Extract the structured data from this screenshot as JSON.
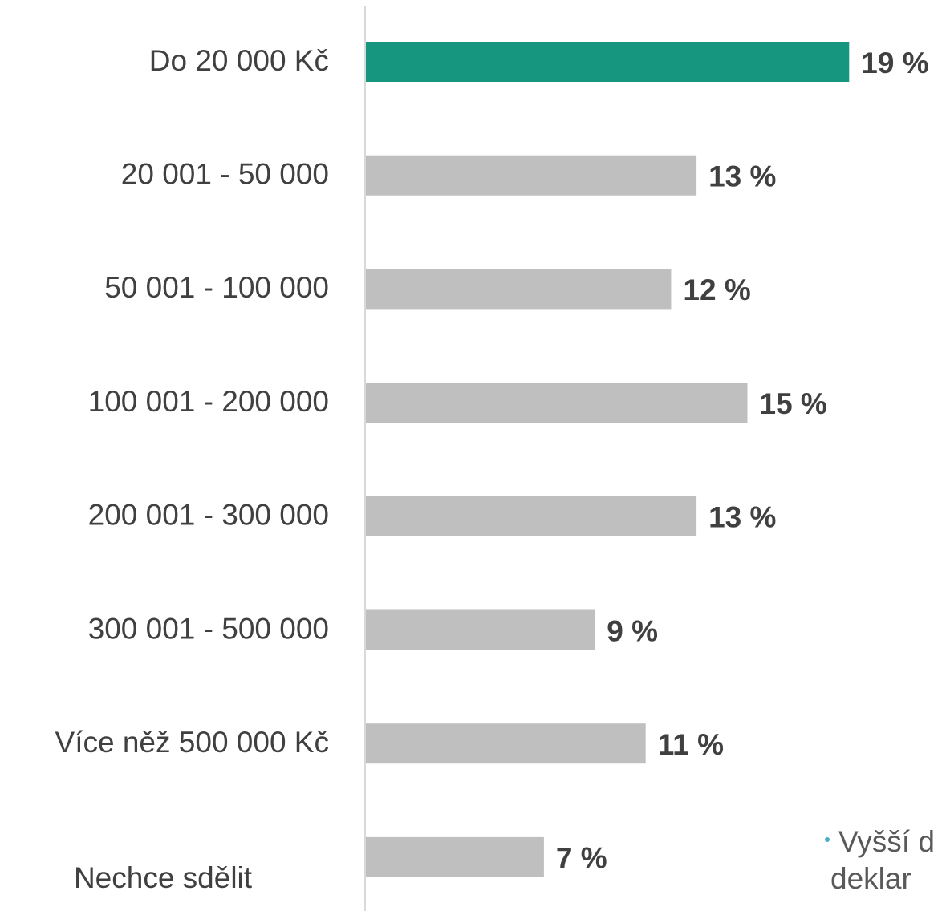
{
  "chart_data": {
    "type": "bar",
    "orientation": "horizontal",
    "categories": [
      "Do 20 000 Kč",
      "20 001 - 50 000",
      "50 001 - 100 000",
      "100 001 - 200 000",
      "200 001 - 300 000",
      "300 001 - 500 000",
      "Více něž 500 000 Kč",
      "Nechce sdělit"
    ],
    "values": [
      19,
      13,
      12,
      15,
      13,
      9,
      11,
      7
    ],
    "value_labels": [
      "19 %",
      "13 %",
      "12 %",
      "15 %",
      "13 %",
      "9 %",
      "11 %",
      "7 %"
    ],
    "colors": [
      "#16957f",
      "#bfbfbf",
      "#bfbfbf",
      "#bfbfbf",
      "#bfbfbf",
      "#bfbfbf",
      "#bfbfbf",
      "#bfbfbf"
    ],
    "annotation": [
      "Vyšší d",
      "deklar"
    ]
  }
}
